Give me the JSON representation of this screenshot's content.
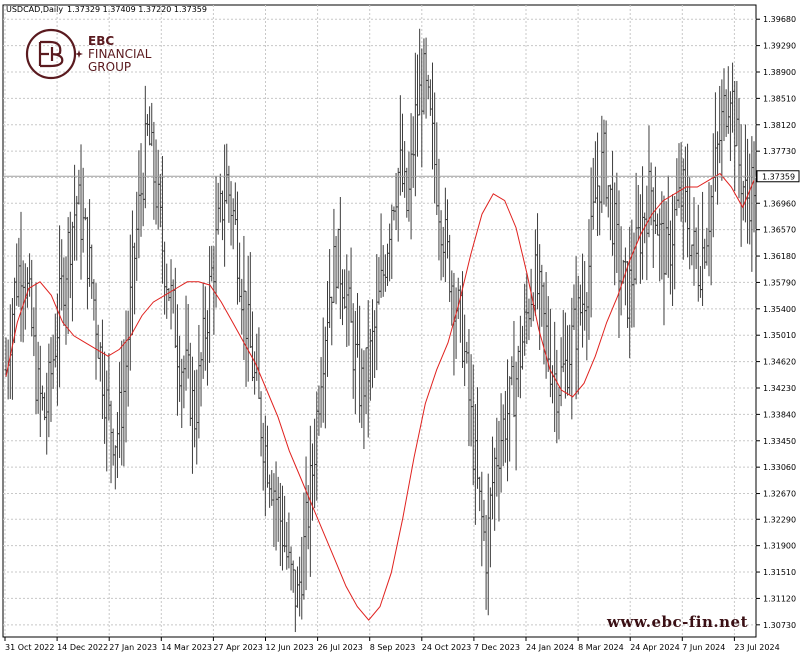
{
  "chart_data": {
    "type": "candlestick",
    "symbol_label": "USDCAD,Daily",
    "ohlc_header": "1.37329 1.37409 1.37220 1.37359",
    "last_price_label": "1.37359",
    "last_price": 1.37359,
    "y_ticks": [
      "1.39680",
      "1.39290",
      "1.38900",
      "1.38510",
      "1.38120",
      "1.37730",
      "1.37340",
      "1.36960",
      "1.36570",
      "1.36180",
      "1.35790",
      "1.35400",
      "1.35010",
      "1.34620",
      "1.34230",
      "1.33840",
      "1.33450",
      "1.33060",
      "1.32670",
      "1.32290",
      "1.31900",
      "1.31510",
      "1.31120",
      "1.30730"
    ],
    "ylim": [
      1.3055,
      1.3989
    ],
    "x_ticks": [
      "31 Oct 2022",
      "14 Dec 2022",
      "27 Jan 2023",
      "14 Mar 2023",
      "27 Apr 2023",
      "12 Jun 2023",
      "26 Jul 2023",
      "8 Sep 2023",
      "24 Oct 2023",
      "7 Dec 2023",
      "24 Jan 2024",
      "8 Mar 2024",
      "24 Apr 2024",
      "7 Jun 2024",
      "23 Jul 2024"
    ],
    "grid": true,
    "legend": "none",
    "closes": [
      1.345,
      1.356,
      1.362,
      1.354,
      1.342,
      1.338,
      1.347,
      1.356,
      1.364,
      1.37,
      1.365,
      1.357,
      1.347,
      1.338,
      1.335,
      1.342,
      1.358,
      1.37,
      1.38,
      1.372,
      1.362,
      1.355,
      1.347,
      1.344,
      1.338,
      1.348,
      1.358,
      1.366,
      1.373,
      1.367,
      1.357,
      1.348,
      1.34,
      1.333,
      1.328,
      1.322,
      1.315,
      1.311,
      1.32,
      1.331,
      1.346,
      1.356,
      1.362,
      1.358,
      1.349,
      1.342,
      1.345,
      1.352,
      1.36,
      1.37,
      1.375,
      1.368,
      1.382,
      1.388,
      1.38,
      1.37,
      1.362,
      1.356,
      1.35,
      1.338,
      1.326,
      1.318,
      1.331,
      1.336,
      1.34,
      1.345,
      1.352,
      1.359,
      1.354,
      1.347,
      1.343,
      1.345,
      1.35,
      1.354,
      1.36,
      1.372,
      1.376,
      1.368,
      1.359,
      1.356,
      1.362,
      1.368,
      1.372,
      1.365,
      1.361,
      1.368,
      1.371,
      1.364,
      1.36,
      1.366,
      1.374,
      1.382,
      1.388,
      1.376,
      1.37,
      1.373
    ],
    "ma_series": [
      1.344,
      1.352,
      1.357,
      1.358,
      1.356,
      1.352,
      1.35,
      1.349,
      1.348,
      1.347,
      1.348,
      1.35,
      1.353,
      1.355,
      1.356,
      1.357,
      1.358,
      1.358,
      1.3575,
      1.355,
      1.352,
      1.349,
      1.346,
      1.342,
      1.338,
      1.333,
      1.329,
      1.325,
      1.321,
      1.317,
      1.313,
      1.31,
      1.308,
      1.31,
      1.315,
      1.323,
      1.332,
      1.34,
      1.345,
      1.349,
      1.355,
      1.362,
      1.368,
      1.371,
      1.37,
      1.366,
      1.359,
      1.351,
      1.345,
      1.342,
      1.341,
      1.343,
      1.347,
      1.352,
      1.356,
      1.361,
      1.365,
      1.368,
      1.37,
      1.371,
      1.372,
      1.372,
      1.373,
      1.374,
      1.372,
      1.369,
      1.373
    ]
  },
  "branding": {
    "name": "EBC",
    "line2": "FINANCIAL",
    "line3": "GROUP",
    "watermark": "www.ebc-fin.net"
  }
}
